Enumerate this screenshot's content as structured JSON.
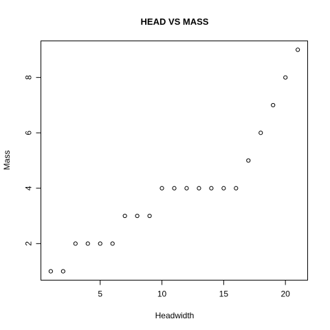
{
  "chart_data": {
    "type": "scatter",
    "title": "HEAD VS MASS",
    "xlabel": "Headwidth",
    "ylabel": "Mass",
    "x": [
      1,
      2,
      3,
      4,
      5,
      6,
      7,
      8,
      9,
      10,
      11,
      12,
      13,
      14,
      15,
      16,
      17,
      18,
      19,
      20,
      21
    ],
    "y": [
      1,
      1,
      2,
      2,
      2,
      2,
      3,
      3,
      3,
      4,
      4,
      4,
      4,
      4,
      4,
      4,
      5,
      6,
      7,
      8,
      9
    ],
    "xlim": [
      0.2,
      21.8
    ],
    "ylim": [
      0.68,
      9.32
    ],
    "xticks": [
      5,
      10,
      15,
      20
    ],
    "yticks": [
      2,
      4,
      6,
      8
    ],
    "grid": false,
    "marker": "open-circle"
  }
}
